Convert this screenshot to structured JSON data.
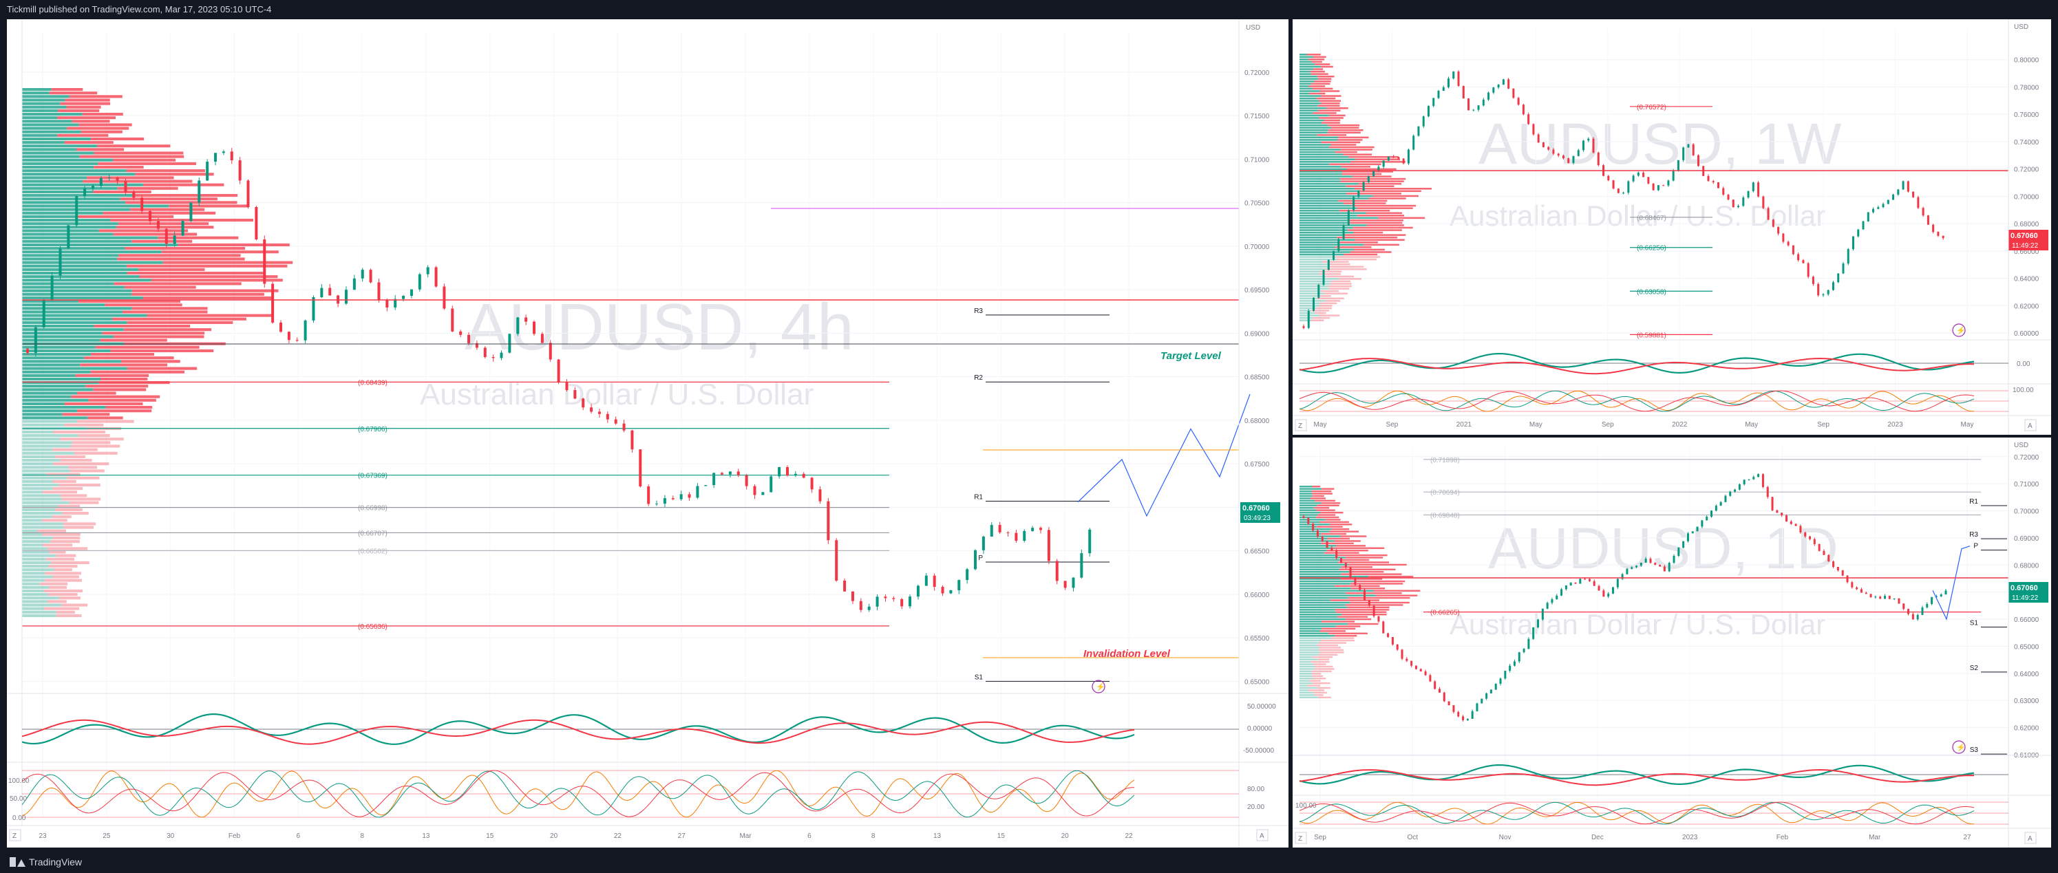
{
  "header": {
    "published_text": "Tickmill published on TradingView.com, Mar 17, 2023 05:10 UTC-4"
  },
  "footer": {
    "logo_text": "TradingView"
  },
  "colors": {
    "bull": "#089981",
    "bear": "#f23645",
    "blue": "#2962ff",
    "orange": "#ff9800",
    "magenta": "#e040fb",
    "price_tag": "#089981",
    "price_tag_red": "#f23645",
    "volume_profile": "#b2b5be"
  },
  "charts": {
    "h4": {
      "watermark_main": "AUDUSD, 4h",
      "watermark_sub": "Australian Dollar / U.S. Dollar",
      "currency": "USD",
      "last_price": "0.67060",
      "countdown": "03:49:23",
      "axis_z": "Z",
      "axis_a": "A",
      "pivot_labels": [
        "R3",
        "R2",
        "R1",
        "P",
        "S1"
      ],
      "annotations": {
        "target": "Target Level",
        "invalidation": "Invalidation Level"
      },
      "osc1_ticks": [
        "50.00000",
        "0.00000",
        "-50.00000"
      ],
      "osc2_ticks": [
        "100.00",
        "50.00",
        "0.00"
      ],
      "osc2_right_ticks": [
        "80.00",
        "20.00"
      ]
    },
    "w1": {
      "watermark_main": "AUDUSD, 1W",
      "watermark_sub": "Australian Dollar / U.S. Dollar",
      "currency": "USD",
      "last_price": "0.67060",
      "countdown": "11:49:22",
      "axis_z": "Z",
      "axis_a": "A",
      "osc2_ticks": [
        "100.00",
        "0.00"
      ]
    },
    "d1": {
      "watermark_main": "AUDUSD, 1D",
      "watermark_sub": "Australian Dollar / U.S. Dollar",
      "currency": "USD",
      "last_price": "0.67060",
      "countdown": "11:49:22",
      "axis_z": "Z",
      "axis_a": "A",
      "pivot_labels": [
        "R1",
        "R3",
        "P",
        "S1",
        "S2",
        "S3"
      ],
      "osc2_ticks": [
        "100.00"
      ]
    }
  },
  "chart_data": [
    {
      "type": "candlestick",
      "title": "AUDUSD, 4h",
      "subtitle": "Australian Dollar / U.S. Dollar",
      "yunit": "USD",
      "ylim": [
        0.649,
        0.7245
      ],
      "yticks": [
        0.72,
        0.715,
        0.71,
        0.705,
        0.7,
        0.695,
        0.69,
        0.685,
        0.68,
        0.675,
        0.67,
        0.665,
        0.66,
        0.655,
        0.65
      ],
      "xticks": [
        "23",
        "25",
        "30",
        "Feb",
        "6",
        "8",
        "13",
        "15",
        "20",
        "22",
        "27",
        "Mar",
        "6",
        "8",
        "13",
        "15",
        "20",
        "22"
      ],
      "close_path": [
        [
          0,
          0.6882
        ],
        [
          6,
          0.6955
        ],
        [
          14,
          0.7065
        ],
        [
          22,
          0.708
        ],
        [
          30,
          0.705
        ],
        [
          38,
          0.6998
        ],
        [
          44,
          0.7052
        ],
        [
          50,
          0.711
        ],
        [
          55,
          0.71
        ],
        [
          60,
          0.704
        ],
        [
          66,
          0.6915
        ],
        [
          72,
          0.6885
        ],
        [
          78,
          0.6955
        ],
        [
          84,
          0.6935
        ],
        [
          90,
          0.6975
        ],
        [
          96,
          0.6925
        ],
        [
          102,
          0.6945
        ],
        [
          108,
          0.698
        ],
        [
          114,
          0.6905
        ],
        [
          120,
          0.689
        ],
        [
          126,
          0.6865
        ],
        [
          132,
          0.692
        ],
        [
          138,
          0.6895
        ],
        [
          144,
          0.6835
        ],
        [
          150,
          0.6815
        ],
        [
          156,
          0.6805
        ],
        [
          162,
          0.6785
        ],
        [
          166,
          0.67
        ],
        [
          172,
          0.6715
        ],
        [
          178,
          0.671
        ],
        [
          184,
          0.6735
        ],
        [
          190,
          0.674
        ],
        [
          196,
          0.671
        ],
        [
          202,
          0.6742
        ],
        [
          208,
          0.6738
        ],
        [
          214,
          0.67
        ],
        [
          218,
          0.6612
        ],
        [
          224,
          0.6585
        ],
        [
          230,
          0.6595
        ],
        [
          236,
          0.659
        ],
        [
          242,
          0.662
        ],
        [
          248,
          0.66
        ],
        [
          254,
          0.664
        ],
        [
          260,
          0.668
        ],
        [
          266,
          0.666
        ],
        [
          272,
          0.6685
        ],
        [
          276,
          0.662
        ],
        [
          280,
          0.6605
        ],
        [
          284,
          0.665
        ],
        [
          288,
          0.6706
        ]
      ],
      "levels": [
        {
          "label": "(0.68439)",
          "value": 0.68439,
          "color": "#f23645"
        },
        {
          "label": "(0.67906)",
          "value": 0.67906,
          "color": "#089981"
        },
        {
          "label": "(0.67369)",
          "value": 0.67369,
          "color": "#089981"
        },
        {
          "label": "(0.66998)",
          "value": 0.66998,
          "color": "#9598a1"
        },
        {
          "label": "(0.66707)",
          "value": 0.66707,
          "color": "#9598a1"
        },
        {
          "label": "(0.66502)",
          "value": 0.66502,
          "color": "#b2b5be"
        },
        {
          "label": "(0.65636)",
          "value": 0.65636,
          "color": "#f23645"
        }
      ],
      "pivots": [
        {
          "label": "R3",
          "value": 0.6921
        },
        {
          "label": "R2",
          "value": 0.6844
        },
        {
          "label": "R1",
          "value": 0.6707
        },
        {
          "label": "P",
          "value": 0.6637
        },
        {
          "label": "S1",
          "value": 0.65
        }
      ],
      "last": 0.6706
    },
    {
      "type": "candlestick",
      "title": "AUDUSD, 1W",
      "subtitle": "Australian Dollar / U.S. Dollar",
      "yunit": "USD",
      "ylim": [
        0.598,
        0.8225
      ],
      "yticks": [
        0.8,
        0.78,
        0.76,
        0.74,
        0.72,
        0.7,
        0.68,
        0.66,
        0.64,
        0.62,
        0.6
      ],
      "xticks": [
        "May",
        "Sep",
        "2021",
        "May",
        "Sep",
        "2022",
        "May",
        "Sep",
        "2023",
        "May"
      ],
      "close_path": [
        [
          0,
          0.605
        ],
        [
          5,
          0.64
        ],
        [
          10,
          0.665
        ],
        [
          15,
          0.7
        ],
        [
          20,
          0.715
        ],
        [
          25,
          0.73
        ],
        [
          30,
          0.725
        ],
        [
          35,
          0.755
        ],
        [
          40,
          0.775
        ],
        [
          45,
          0.79
        ],
        [
          50,
          0.76
        ],
        [
          55,
          0.775
        ],
        [
          60,
          0.785
        ],
        [
          65,
          0.765
        ],
        [
          70,
          0.74
        ],
        [
          75,
          0.73
        ],
        [
          80,
          0.725
        ],
        [
          85,
          0.745
        ],
        [
          90,
          0.715
        ],
        [
          95,
          0.7
        ],
        [
          100,
          0.72
        ],
        [
          105,
          0.705
        ],
        [
          110,
          0.712
        ],
        [
          115,
          0.74
        ],
        [
          120,
          0.715
        ],
        [
          125,
          0.705
        ],
        [
          130,
          0.69
        ],
        [
          135,
          0.71
        ],
        [
          140,
          0.68
        ],
        [
          145,
          0.665
        ],
        [
          150,
          0.65
        ],
        [
          155,
          0.625
        ],
        [
          160,
          0.64
        ],
        [
          165,
          0.67
        ],
        [
          170,
          0.69
        ],
        [
          175,
          0.695
        ],
        [
          180,
          0.71
        ],
        [
          185,
          0.69
        ],
        [
          190,
          0.67
        ],
        [
          193,
          0.6706
        ]
      ],
      "levels": [
        {
          "label": "(0.76572)",
          "value": 0.76572,
          "color": "#f23645"
        },
        {
          "label": "(0.68467)",
          "value": 0.68467,
          "color": "#9598a1"
        },
        {
          "label": "(0.66256)",
          "value": 0.66256,
          "color": "#089981"
        },
        {
          "label": "(0.63058)",
          "value": 0.63058,
          "color": "#089981"
        },
        {
          "label": "(0.59881)",
          "value": 0.59881,
          "color": "#f23645"
        }
      ],
      "last": 0.6706
    },
    {
      "type": "candlestick",
      "title": "AUDUSD, 1D",
      "subtitle": "Australian Dollar / U.S. Dollar",
      "yunit": "USD",
      "ylim": [
        0.6115,
        0.7235
      ],
      "yticks": [
        0.72,
        0.71,
        0.7,
        0.69,
        0.68,
        0.67,
        0.66,
        0.65,
        0.64,
        0.63,
        0.62,
        0.61
      ],
      "xticks": [
        "Sep",
        "Oct",
        "Nov",
        "Dec",
        "2023",
        "Feb",
        "Mar",
        "27"
      ],
      "close_path": [
        [
          0,
          0.698
        ],
        [
          6,
          0.688
        ],
        [
          12,
          0.68
        ],
        [
          18,
          0.668
        ],
        [
          24,
          0.655
        ],
        [
          30,
          0.645
        ],
        [
          36,
          0.64
        ],
        [
          42,
          0.63
        ],
        [
          48,
          0.622
        ],
        [
          54,
          0.632
        ],
        [
          60,
          0.64
        ],
        [
          66,
          0.65
        ],
        [
          72,
          0.665
        ],
        [
          78,
          0.672
        ],
        [
          84,
          0.675
        ],
        [
          90,
          0.668
        ],
        [
          96,
          0.678
        ],
        [
          102,
          0.682
        ],
        [
          108,
          0.678
        ],
        [
          114,
          0.69
        ],
        [
          120,
          0.698
        ],
        [
          126,
          0.705
        ],
        [
          132,
          0.712
        ],
        [
          136,
          0.713
        ],
        [
          140,
          0.7
        ],
        [
          146,
          0.695
        ],
        [
          152,
          0.688
        ],
        [
          158,
          0.68
        ],
        [
          164,
          0.672
        ],
        [
          170,
          0.668
        ],
        [
          176,
          0.668
        ],
        [
          182,
          0.66
        ],
        [
          188,
          0.668
        ],
        [
          192,
          0.6706
        ]
      ],
      "levels": [
        {
          "label": "(0.71898)",
          "value": 0.71898,
          "color": "#b2b5be"
        },
        {
          "label": "(0.70694)",
          "value": 0.70694,
          "color": "#b2b5be"
        },
        {
          "label": "(0.69848)",
          "value": 0.69848,
          "color": "#b2b5be"
        },
        {
          "label": "(0.66265)",
          "value": 0.66265,
          "color": "#f23645"
        }
      ],
      "pivots": [
        {
          "label": "R1",
          "value": 0.7019
        },
        {
          "label": "R3",
          "value": 0.6897
        },
        {
          "label": "P",
          "value": 0.6855
        },
        {
          "label": "S1",
          "value": 0.6571
        },
        {
          "label": "S2",
          "value": 0.6405
        },
        {
          "label": "S3",
          "value": 0.6102
        }
      ],
      "last": 0.6706
    }
  ]
}
